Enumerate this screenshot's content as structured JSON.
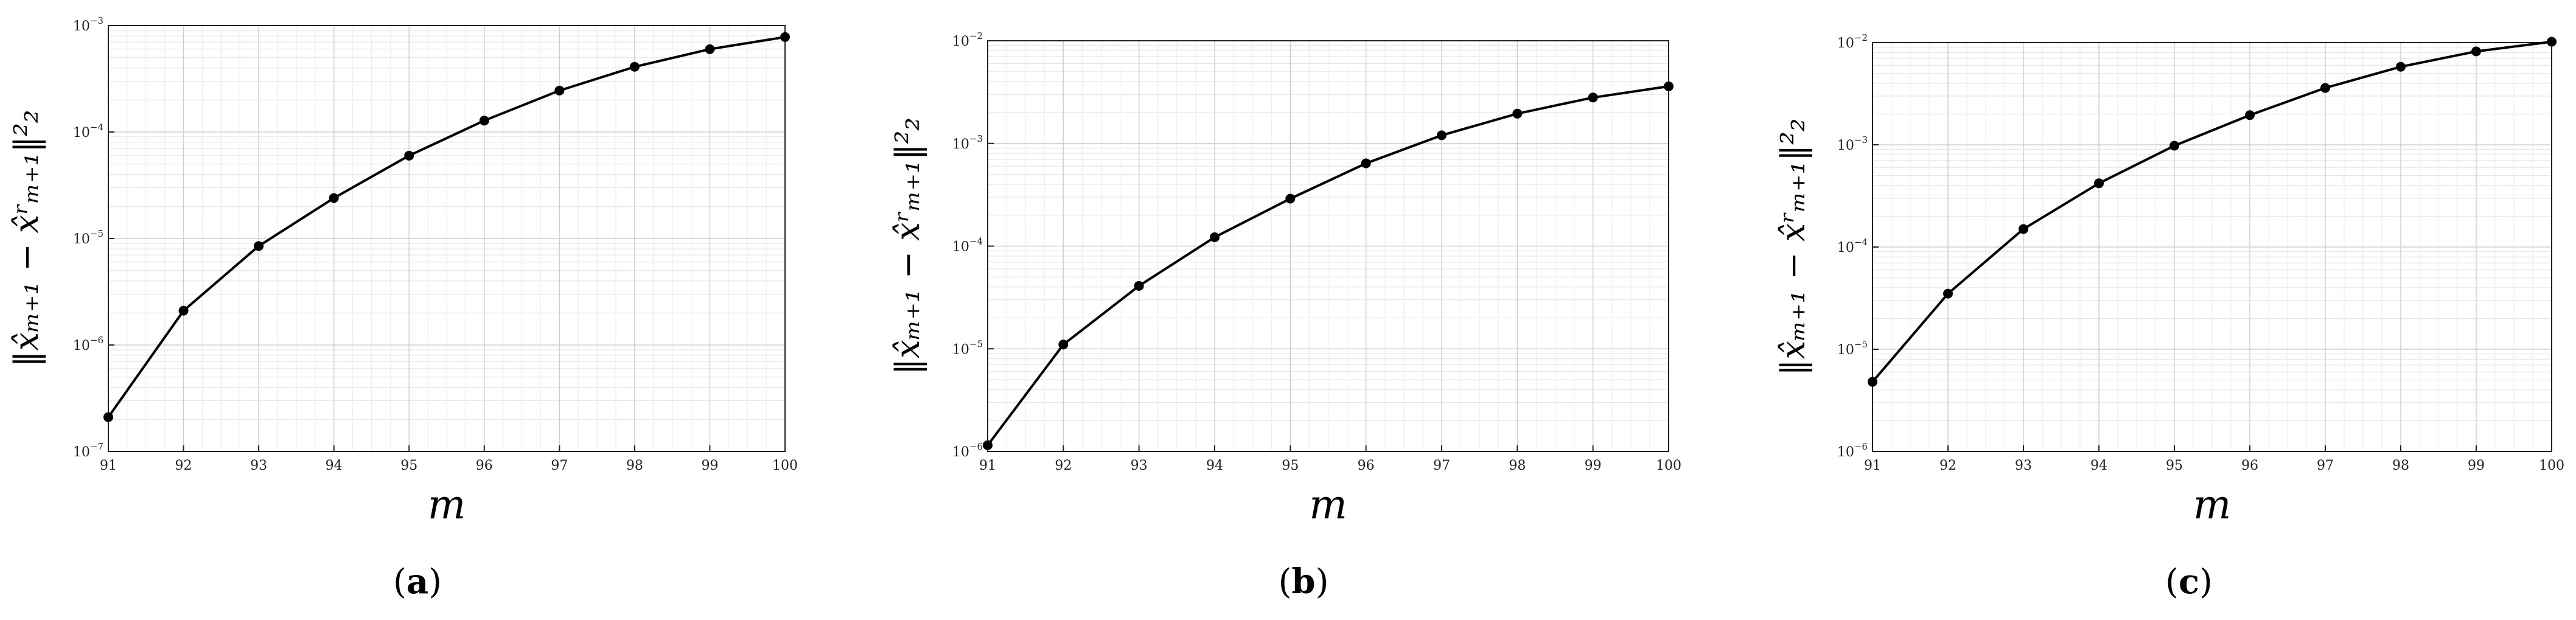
{
  "chart_data": [
    {
      "type": "line",
      "caption": "(a)",
      "caption_letter": "a",
      "xlabel": "m",
      "ylabel": "‖x̂ₘ₊₁ − x̂ʳₘ₊₁‖²₂",
      "yscale": "log",
      "grid": true,
      "xlim": [
        91,
        100
      ],
      "ylim_exp": [
        -7,
        -3
      ],
      "x": [
        91,
        92,
        93,
        94,
        95,
        96,
        97,
        98,
        99,
        100
      ],
      "series": [
        {
          "color": "#000000",
          "values": [
            2.1e-07,
            2.1e-06,
            8.5e-06,
            2.4e-05,
            6e-05,
            0.000128,
            0.000245,
            0.00041,
            0.0006,
            0.00078
          ]
        }
      ]
    },
    {
      "type": "line",
      "caption": "(b)",
      "caption_letter": "b",
      "xlabel": "m",
      "ylabel": "‖x̂ₘ₊₁ − x̂ʳₘ₊₁‖²₂",
      "yscale": "log",
      "grid": true,
      "xlim": [
        91,
        100
      ],
      "ylim_exp": [
        -6,
        -2
      ],
      "x": [
        91,
        92,
        93,
        94,
        95,
        96,
        97,
        98,
        99,
        100
      ],
      "series": [
        {
          "color": "#000000",
          "values": [
            1.15e-06,
            1.1e-05,
            4.1e-05,
            0.000122,
            0.00029,
            0.00064,
            0.0012,
            0.00195,
            0.0028,
            0.0036
          ]
        }
      ]
    },
    {
      "type": "line",
      "caption": "(c)",
      "caption_letter": "c",
      "xlabel": "m",
      "ylabel": "‖x̂ₘ₊₁ − x̂ʳₘ₊₁‖²₂",
      "yscale": "log",
      "grid": true,
      "xlim": [
        91,
        100
      ],
      "ylim_exp": [
        -6,
        -2
      ],
      "x": [
        91,
        92,
        93,
        94,
        95,
        96,
        97,
        98,
        99,
        100
      ],
      "series": [
        {
          "color": "#000000",
          "values": [
            4.8e-06,
            3.5e-05,
            0.00015,
            0.00042,
            0.00098,
            0.00195,
            0.0036,
            0.0058,
            0.0082,
            0.0102
          ]
        }
      ]
    }
  ]
}
